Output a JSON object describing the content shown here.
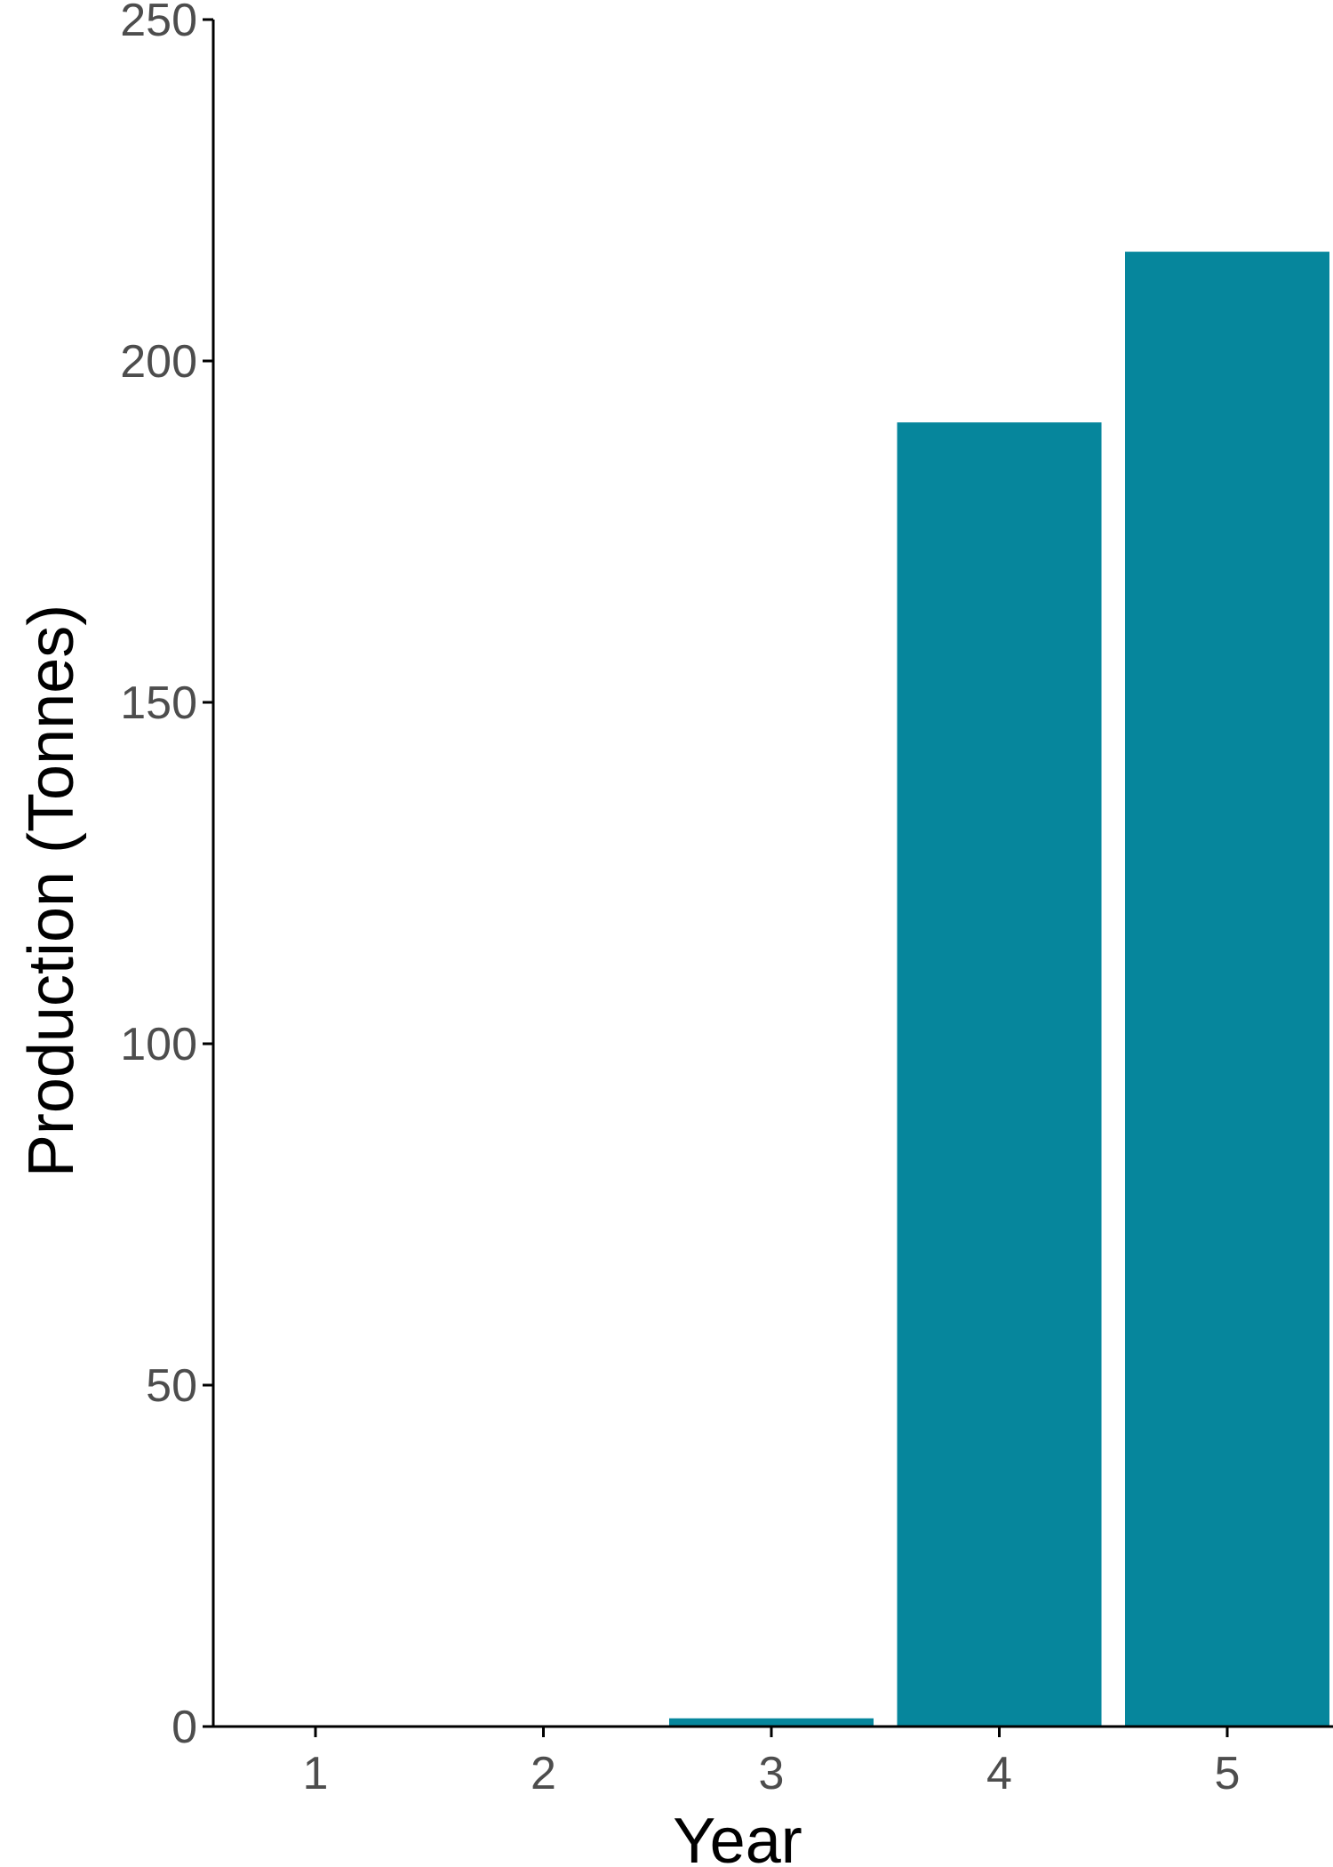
{
  "chart_data": {
    "type": "bar",
    "categories": [
      "1",
      "2",
      "3",
      "4",
      "5"
    ],
    "values": [
      0,
      0,
      1.2,
      191,
      216
    ],
    "title": "",
    "xlabel": "Year",
    "ylabel": "Production (Tonnes)",
    "ylim": [
      0,
      250
    ],
    "yticks": [
      "0",
      "50",
      "100",
      "150",
      "200",
      "250"
    ],
    "bar_color": "#06869C",
    "grid": false,
    "legend": "none"
  }
}
